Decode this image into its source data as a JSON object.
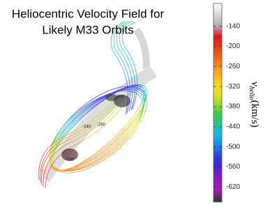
{
  "chart_data": {
    "type": "colorbar",
    "title": [
      "Heliocentric Velocity Field for",
      "Likely M33 Orbits"
    ],
    "colorbar_label": {
      "symbol": "v",
      "subscript": "helio",
      "unit": "(km/s)"
    },
    "ylim": [
      -665,
      -72
    ],
    "yticks": [
      -140,
      -200,
      -260,
      -320,
      -380,
      -440,
      -500,
      -560,
      -620
    ],
    "colormap": [
      "#ffffff",
      "#d8d8d8",
      "#b0b0b0",
      "#e0141c",
      "#ee3a14",
      "#f56a14",
      "#f89a1c",
      "#f8c81e",
      "#e8e422",
      "#a8dc28",
      "#3ccc3c",
      "#20c89c",
      "#18b4e8",
      "#1e78f0",
      "#2838e8",
      "#5220d8",
      "#8c1cc0",
      "#a020a8",
      "#303030"
    ],
    "annotations": [
      "-300",
      "-240",
      "-280",
      "-180"
    ]
  }
}
